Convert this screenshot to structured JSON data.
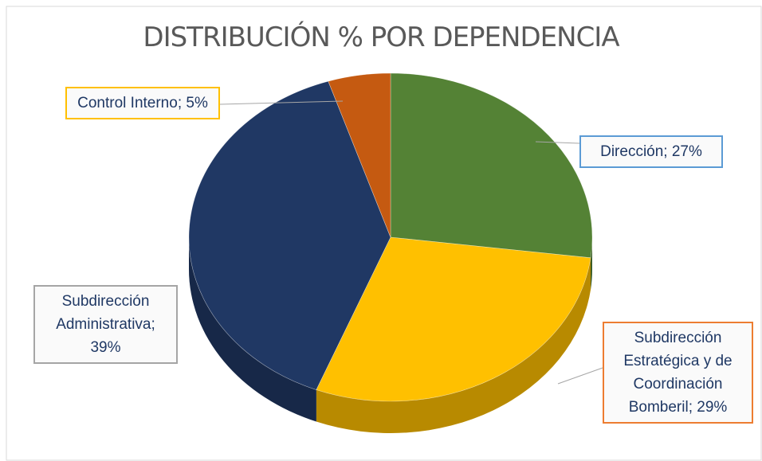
{
  "chart_data": {
    "type": "pie",
    "title": "DISTRIBUCIÓN % POR DEPENDENCIA",
    "values": [
      27,
      29,
      39,
      5
    ],
    "value_labels": [
      "Dirección; 27%",
      "Subdirección Estratégica y de Coordinación Bomberil; 29%",
      "Subdirección Administrativa; 39%",
      "Control Interno; 5%"
    ],
    "colors": [
      "#548235",
      "#ffc000",
      "#203864",
      "#c55a11"
    ],
    "label_border_colors": [
      "#5b9bd5",
      "#ed7d31",
      "#a5a5a5",
      "#ffc000"
    ]
  }
}
